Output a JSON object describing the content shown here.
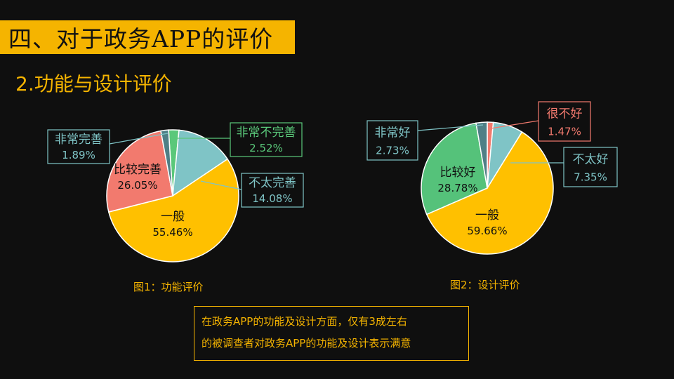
{
  "header": {
    "title": "四、对于政务APP的评价",
    "subtitle": "2.功能与设计评价"
  },
  "colors": {
    "accent": "#f5b400",
    "background": "#0f0f0f"
  },
  "chart_data": [
    {
      "type": "pie",
      "caption": "图1：功能评价",
      "slices": [
        {
          "label": "非常不完善",
          "value": 2.52,
          "value_label": "2.52%",
          "color": "#5ac87a",
          "label_color": "#5ac87a"
        },
        {
          "label": "不太完善",
          "value": 14.08,
          "value_label": "14.08%",
          "color": "#7fc4c6",
          "label_color": "#7fc4c6"
        },
        {
          "label": "一般",
          "value": 55.46,
          "value_label": "55.46%",
          "color": "#ffc000",
          "label_color": "#111111"
        },
        {
          "label": "比较完善",
          "value": 26.05,
          "value_label": "26.05%",
          "color": "#f27a6e",
          "label_color": "#111111"
        },
        {
          "label": "非常完善",
          "value": 1.89,
          "value_label": "1.89%",
          "color": "#4f7f86",
          "label_color": "#7fc4c6"
        }
      ]
    },
    {
      "type": "pie",
      "caption": "图2：设计评价",
      "slices": [
        {
          "label": "很不好",
          "value": 1.47,
          "value_label": "1.47%",
          "color": "#f27a6e",
          "label_color": "#f27a6e"
        },
        {
          "label": "不太好",
          "value": 7.35,
          "value_label": "7.35%",
          "color": "#7fc4c6",
          "label_color": "#7fc4c6"
        },
        {
          "label": "一般",
          "value": 59.66,
          "value_label": "59.66%",
          "color": "#ffc000",
          "label_color": "#111111"
        },
        {
          "label": "比较好",
          "value": 28.78,
          "value_label": "28.78%",
          "color": "#55c27a",
          "label_color": "#111111"
        },
        {
          "label": "非常好",
          "value": 2.73,
          "value_label": "2.73%",
          "color": "#4f7f86",
          "label_color": "#7fc4c6"
        }
      ]
    }
  ],
  "note": {
    "line1": "在政务APP的功能及设计方面，仅有3成左右",
    "line2": "的被调查者对政务APP的功能及设计表示满意"
  }
}
